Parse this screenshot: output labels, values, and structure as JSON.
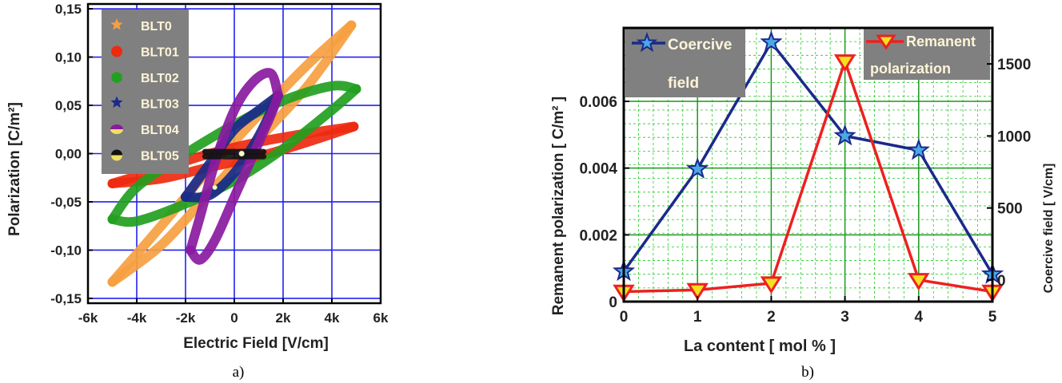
{
  "colors": {
    "grid_blue": "#2222ee",
    "grid_green": "#22cc22",
    "BLT0": "#f5a040",
    "BLT01": "#ee2a10",
    "BLT02": "#22a020",
    "BLT03": "#1a2a8a",
    "BLT04": "#8a1aa0",
    "BLT05": "#111111",
    "coercive": "#1a2a8a",
    "remanent": "#ee2020",
    "legend_bg": "#808080",
    "legend_text": "#fff4d8"
  },
  "captions": {
    "a": "a)",
    "b": "b)"
  },
  "chart_data": [
    {
      "type": "scatter",
      "xlabel": "Electric Field  [V/cm]",
      "ylabel": "Polarization [C/m²]",
      "xlim": [
        -6000,
        6000
      ],
      "ylim": [
        -0.155,
        0.155
      ],
      "xticks": [
        -6000,
        -4000,
        -2000,
        0,
        2000,
        4000,
        6000
      ],
      "xtick_labels": [
        "-6k",
        "-4k",
        "-2k",
        "0",
        "2k",
        "4k",
        "6k"
      ],
      "yticks": [
        -0.15,
        -0.1,
        -0.05,
        0.0,
        0.05,
        0.1,
        0.15
      ],
      "ytick_labels": [
        "-0,15",
        "-0,10",
        "-0,05",
        "0,00",
        "0,05",
        "0,10",
        "0,15"
      ],
      "grid": true,
      "legend_position": "top-left",
      "series": [
        {
          "name": "BLT0",
          "color_key": "BLT0",
          "upper": [
            [
              -5000,
              -0.133
            ],
            [
              -3000,
              -0.075
            ],
            [
              -1000,
              -0.015
            ],
            [
              1000,
              0.04
            ],
            [
              3000,
              0.092
            ],
            [
              4800,
              0.133
            ]
          ],
          "lower": [
            [
              -5000,
              -0.133
            ],
            [
              -3000,
              -0.095
            ],
            [
              -1000,
              -0.04
            ],
            [
              1000,
              0.015
            ],
            [
              3000,
              0.07
            ],
            [
              4800,
              0.133
            ]
          ]
        },
        {
          "name": "BLT01",
          "color_key": "BLT01",
          "upper": [
            [
              -5000,
              -0.031
            ],
            [
              -3000,
              -0.016
            ],
            [
              -1000,
              0.0
            ],
            [
              1000,
              0.012
            ],
            [
              3000,
              0.021
            ],
            [
              4900,
              0.028
            ]
          ],
          "lower": [
            [
              -5000,
              -0.031
            ],
            [
              -3000,
              -0.026
            ],
            [
              -1000,
              -0.014
            ],
            [
              1000,
              -0.003
            ],
            [
              3000,
              0.012
            ],
            [
              4900,
              0.028
            ]
          ]
        },
        {
          "name": "BLT02",
          "color_key": "BLT02",
          "upper": [
            [
              -5000,
              -0.068
            ],
            [
              -4000,
              -0.035
            ],
            [
              -2000,
              0.0
            ],
            [
              0,
              0.03
            ],
            [
              2000,
              0.055
            ],
            [
              4000,
              0.07
            ],
            [
              5000,
              0.067
            ]
          ],
          "lower": [
            [
              -5000,
              -0.068
            ],
            [
              -4000,
              -0.07
            ],
            [
              -2000,
              -0.052
            ],
            [
              0,
              -0.028
            ],
            [
              2000,
              0.005
            ],
            [
              4000,
              0.045
            ],
            [
              5000,
              0.067
            ]
          ]
        },
        {
          "name": "BLT03",
          "color_key": "BLT03",
          "upper": [
            [
              -2000,
              -0.045
            ],
            [
              -1000,
              -0.01
            ],
            [
              0,
              0.025
            ],
            [
              1000,
              0.045
            ],
            [
              1800,
              0.06
            ]
          ],
          "lower": [
            [
              -2000,
              -0.045
            ],
            [
              -1000,
              -0.043
            ],
            [
              0,
              -0.02
            ],
            [
              1000,
              0.018
            ],
            [
              1800,
              0.06
            ]
          ]
        },
        {
          "name": "BLT04",
          "color_key": "BLT04",
          "upper": [
            [
              -1800,
              -0.1
            ],
            [
              -1400,
              -0.065
            ],
            [
              -800,
              -0.01
            ],
            [
              0,
              0.045
            ],
            [
              800,
              0.075
            ],
            [
              1500,
              0.083
            ],
            [
              1800,
              0.06
            ]
          ],
          "lower": [
            [
              -1800,
              -0.1
            ],
            [
              -1400,
              -0.11
            ],
            [
              -800,
              -0.09
            ],
            [
              0,
              -0.045
            ],
            [
              800,
              0.0
            ],
            [
              1500,
              0.04
            ],
            [
              1800,
              0.06
            ]
          ]
        },
        {
          "name": "BLT05",
          "color_key": "BLT05",
          "upper": [
            [
              -1200,
              0.002
            ],
            [
              0,
              0.002
            ],
            [
              1200,
              0.002
            ]
          ],
          "lower": [
            [
              -1200,
              -0.003
            ],
            [
              0,
              -0.003
            ],
            [
              1200,
              -0.003
            ]
          ]
        }
      ]
    },
    {
      "type": "line",
      "xlabel": "La content [ mol % ]",
      "ylabel_left": "Remanent  polarization  [  C/m² ]",
      "ylabel_right": "Coercive field [ V/cm]",
      "x": [
        0,
        1,
        2,
        3,
        4,
        5
      ],
      "xlim": [
        0,
        5
      ],
      "xticks": [
        0,
        1,
        2,
        3,
        4,
        5
      ],
      "xtick_labels": [
        "0",
        "1",
        "2",
        "3",
        "4",
        "5"
      ],
      "ylim_left": [
        0,
        0.0082
      ],
      "yticks_left": [
        0,
        0.002,
        0.004,
        0.006
      ],
      "ytick_labels_left": [
        "0",
        "0.002",
        "0.004",
        "0.006"
      ],
      "ylim_right": [
        -150,
        1750
      ],
      "yticks_right": [
        0,
        500,
        1000,
        1500
      ],
      "ytick_labels_right": [
        "0",
        "500",
        "1000",
        "1500"
      ],
      "grid": true,
      "series": [
        {
          "name": "Coercive field",
          "legend_line1": "Coercive",
          "legend_line2": "field",
          "axis": "right",
          "marker": "star",
          "color_key": "coercive",
          "values": [
            60,
            770,
            1650,
            1000,
            900,
            40
          ]
        },
        {
          "name": "Remanent polarization",
          "legend_line1": "Remanent",
          "legend_line2": "polarization",
          "axis": "left",
          "marker": "triangle-down",
          "color_key": "remanent",
          "values": [
            0.0003,
            0.00035,
            0.00055,
            0.0072,
            0.00065,
            0.0003
          ]
        }
      ]
    }
  ]
}
